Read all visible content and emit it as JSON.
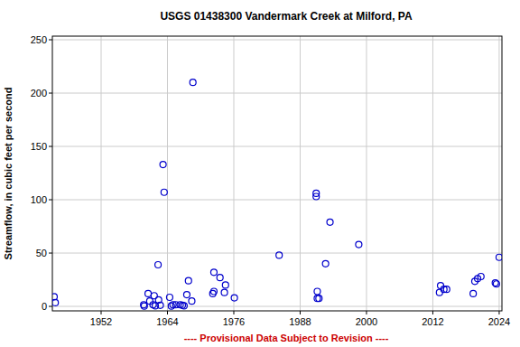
{
  "chart_data": {
    "type": "scatter",
    "title": "USGS 01438300 Vandermark Creek at Milford, PA",
    "y_label": "Streamflow, in cubic feet per second",
    "annotation": "---- Provisional Data Subject to Revision ----",
    "x": [
      1943.5,
      1943.7,
      1959.7,
      1959.8,
      1960.5,
      1960.8,
      1961.4,
      1961.6,
      1961.8,
      1962.3,
      1962.4,
      1962.7,
      1963.2,
      1963.4,
      1964.4,
      1964.7,
      1965.0,
      1965.5,
      1966.3,
      1966.7,
      1967.0,
      1967.5,
      1967.8,
      1968.4,
      1968.6,
      1972.2,
      1972.4,
      1972.4,
      1973.5,
      1974.3,
      1974.5,
      1976.1,
      1984.2,
      1990.9,
      1990.9,
      1991.1,
      1991.1,
      1991.4,
      1992.6,
      1993.4,
      1998.6,
      2013.2,
      2013.4,
      2014.0,
      2014.5,
      2019.3,
      2019.6,
      2020.1,
      2020.7,
      2023.3,
      2023.5,
      2024.0
    ],
    "values": [
      9,
      3.5,
      1.5,
      0.3,
      12,
      5,
      1.5,
      10,
      0.5,
      39,
      6,
      1,
      133,
      107,
      8.5,
      0.3,
      1.5,
      1.5,
      1.5,
      1,
      0.5,
      11,
      24,
      5,
      210,
      12,
      32,
      14,
      27,
      13,
      20,
      8,
      48,
      106,
      103,
      14,
      7.5,
      7.5,
      40,
      79,
      58,
      13,
      19.5,
      16,
      16,
      12,
      23.5,
      26,
      28,
      22,
      21,
      46
    ],
    "color": "#0000cc",
    "marker": "circle",
    "xlim": [
      1943.18,
      2024.5
    ],
    "ylim": [
      -4.2,
      253.4
    ],
    "xticks": [
      1952,
      1964,
      1976,
      1988,
      2000,
      2012,
      2024
    ],
    "yticks": [
      0,
      50,
      100,
      150,
      200,
      250
    ],
    "grid": true
  }
}
